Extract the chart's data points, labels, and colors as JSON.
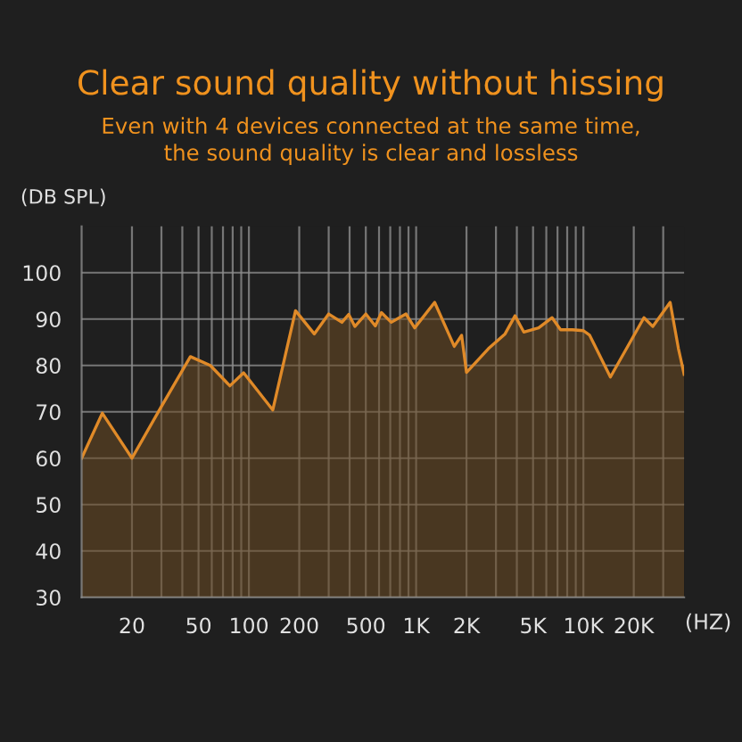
{
  "chart_data": {
    "type": "area",
    "title": "Clear sound quality without hissing",
    "subtitle": "Even with 4 devices connected at the same time,\nthe sound quality is clear and lossless",
    "ylabel": "(DB SPL)",
    "xlabel": "(HZ)",
    "log": "x",
    "xlim": [
      10,
      40000
    ],
    "xticks": [
      20,
      {
        "value": 30,
        "label": null
      },
      {
        "value": 40,
        "label": null
      },
      50,
      {
        "value": 60,
        "label": null
      },
      {
        "value": 70,
        "label": null
      },
      {
        "value": 80,
        "label": null
      },
      {
        "value": 90,
        "label": null
      },
      100,
      200,
      {
        "value": 300,
        "label": null
      },
      {
        "value": 400,
        "label": null
      },
      500,
      {
        "value": 600,
        "label": null
      },
      {
        "value": 700,
        "label": null
      },
      {
        "value": 800,
        "label": null
      },
      {
        "value": 900,
        "label": null
      },
      {
        "value": 1000,
        "label": "1K"
      },
      {
        "value": 2000,
        "label": "2K"
      },
      {
        "value": 3000,
        "label": null
      },
      {
        "value": 4000,
        "label": null
      },
      {
        "value": 5000,
        "label": "5K"
      },
      {
        "value": 6000,
        "label": null
      },
      {
        "value": 7000,
        "label": null
      },
      {
        "value": 8000,
        "label": null
      },
      {
        "value": 9000,
        "label": null
      },
      {
        "value": 10000,
        "label": "10K"
      },
      {
        "value": 20000,
        "label": "20K"
      },
      {
        "value": 30000,
        "label": null
      }
    ],
    "ylim": [
      30,
      110
    ],
    "yticks": [
      30,
      40,
      50,
      60,
      70,
      80,
      90,
      100
    ],
    "grid": true,
    "series": [
      {
        "color": "#e08a28",
        "x": [
          10,
          13.3,
          20,
          29.5,
          44.7,
          58.8,
          77,
          93,
          139,
          190,
          246,
          300,
          360,
          395,
          430,
          500,
          570,
          620,
          710,
          870,
          980,
          1290,
          1690,
          1870,
          2000,
          2700,
          3400,
          3900,
          4400,
          5400,
          6500,
          7300,
          8600,
          10000,
          10900,
          14500,
          23000,
          26000,
          33000,
          37000,
          40000
        ],
        "values": [
          60,
          69.7,
          60,
          70.7,
          81.9,
          80,
          75.6,
          78.4,
          70.4,
          91.8,
          86.8,
          91.1,
          89.3,
          91,
          88.4,
          91.1,
          88.5,
          91.4,
          89.3,
          91.1,
          88.1,
          93.6,
          84.1,
          86.5,
          78.5,
          83.6,
          86.8,
          90.7,
          87.2,
          88.1,
          90.3,
          87.7,
          87.7,
          87.5,
          86.5,
          77.5,
          90.3,
          88.4,
          93.6,
          83.6,
          78.1
        ]
      }
    ]
  }
}
